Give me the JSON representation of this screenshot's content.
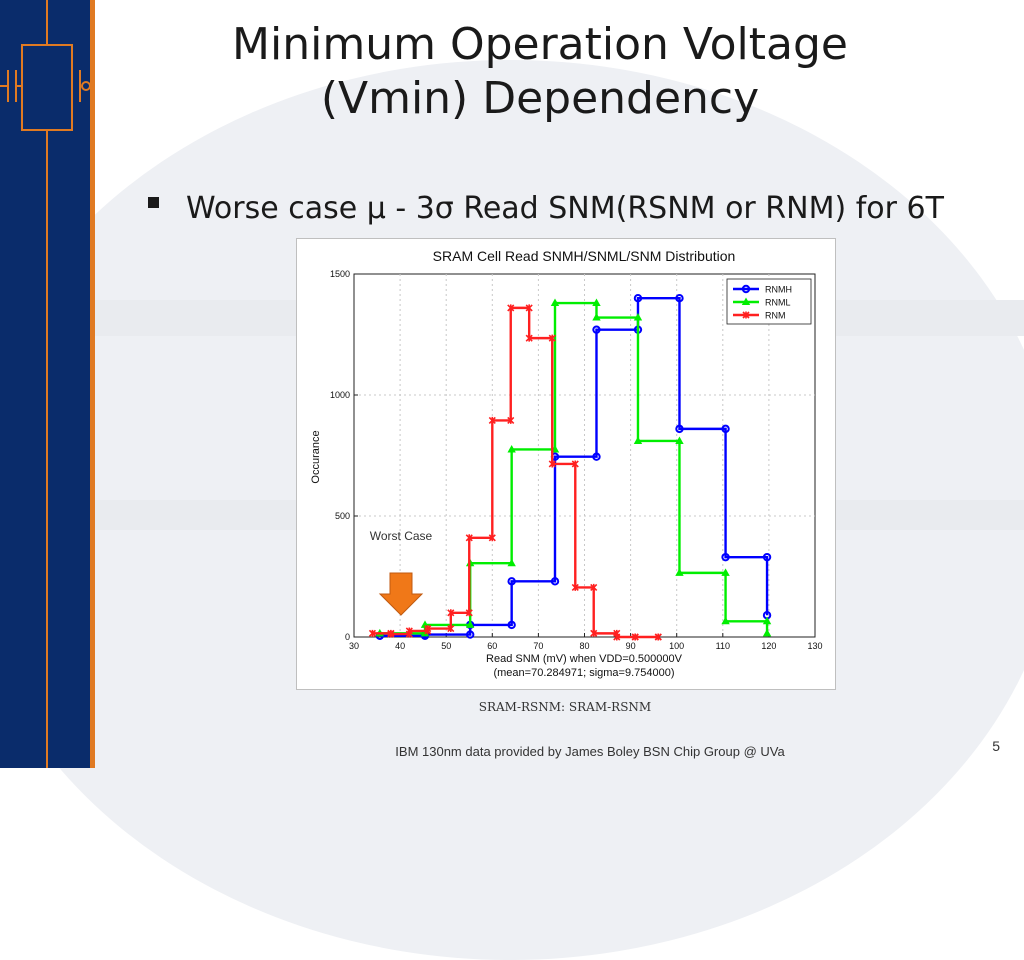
{
  "slide": {
    "title_line1": "Minimum Operation Voltage",
    "title_line2": "(Vmin) Dependency",
    "bullet": "Worse case µ - 3σ Read SNM(RSNM or RNM) for 6T",
    "caption": "SRAM-RSNM: SRAM-RSNM",
    "footer": "IBM 130nm data provided by James Boley BSN Chip Group @ UVa",
    "page_number": "5",
    "annotation": "Worst Case"
  },
  "colors": {
    "sidebar": "#0a2c6b",
    "accent": "#e07a22",
    "arrow": "#f07818"
  },
  "chart_data": {
    "type": "line",
    "title": "SRAM Cell Read SNMH/SNML/SNM Distribution",
    "xlabel": "Read SNM (mV) when VDD=0.500000V",
    "xlabel2": "(mean=70.284971; sigma=9.754000)",
    "ylabel": "Occurance",
    "xlim": [
      30,
      130
    ],
    "ylim": [
      0,
      1500
    ],
    "xticks": [
      30,
      40,
      50,
      60,
      70,
      80,
      90,
      100,
      110,
      120,
      130
    ],
    "yticks": [
      0,
      500,
      1000,
      1500
    ],
    "grid": true,
    "legend_position": "top-right",
    "series": [
      {
        "name": "RNMH",
        "color": "#0000ff",
        "marker": "circle",
        "x": [
          35.6,
          45.4,
          55.2,
          64.2,
          73.6,
          82.6,
          91.6,
          100.6,
          110.6,
          119.6
        ],
        "y": [
          5,
          10,
          50,
          230,
          745,
          1270,
          1400,
          860,
          330,
          90
        ]
      },
      {
        "name": "RNML",
        "color": "#00ee00",
        "marker": "triangle",
        "x": [
          35.6,
          45.4,
          55.2,
          64.2,
          73.6,
          82.6,
          91.6,
          100.6,
          110.6,
          119.6
        ],
        "y": [
          15,
          50,
          305,
          775,
          1380,
          1320,
          810,
          265,
          65,
          15
        ]
      },
      {
        "name": "RNM",
        "color": "#ff2020",
        "marker": "star",
        "x": [
          34,
          38,
          42,
          46,
          51,
          55,
          60,
          64,
          68,
          73,
          78,
          82,
          87,
          91,
          96
        ],
        "y": [
          15,
          12,
          25,
          35,
          100,
          410,
          895,
          1360,
          1235,
          715,
          205,
          15,
          0,
          0,
          0
        ]
      }
    ]
  }
}
